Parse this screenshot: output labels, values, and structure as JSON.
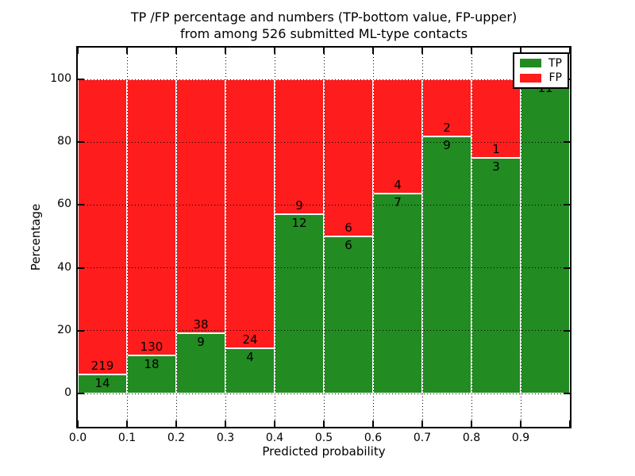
{
  "title": {
    "line1": "TP /FP percentage and numbers (TP-bottom value, FP-upper)",
    "line2": "from among 526 submitted ML-type contacts"
  },
  "chart_data": {
    "type": "bar",
    "stacked": true,
    "normalized_to_percent": 100,
    "bin_start": [
      0.0,
      0.1,
      0.2,
      0.3,
      0.4,
      0.5,
      0.6,
      0.7,
      0.8,
      0.9
    ],
    "bin_width": 0.1,
    "series": [
      {
        "name": "TP",
        "color": "#228b22",
        "counts": [
          14,
          18,
          9,
          4,
          12,
          6,
          7,
          9,
          3,
          11
        ]
      },
      {
        "name": "FP",
        "color": "#ff1c1c",
        "counts": [
          219,
          130,
          38,
          24,
          9,
          6,
          4,
          2,
          1,
          0
        ]
      }
    ],
    "tp_percent_shown": [
      6.0,
      12.2,
      19.1,
      14.3,
      57.1,
      50.0,
      63.6,
      81.8,
      75.0,
      100.0
    ],
    "total_contacts": 526,
    "xlabel": "Predicted probability",
    "ylabel": "Percentage",
    "xticks": [
      "0.0",
      "0.1",
      "0.2",
      "0.3",
      "0.4",
      "0.5",
      "0.6",
      "0.7",
      "0.8",
      "0.9"
    ],
    "yticks": [
      0,
      20,
      40,
      60,
      80,
      100
    ],
    "xlim": [
      0.0,
      1.0
    ],
    "ylim_display": [
      -11,
      110
    ],
    "grid": "dotted",
    "legend": {
      "position": "upper right",
      "entries": [
        {
          "label": "TP",
          "color": "#228b22"
        },
        {
          "label": "FP",
          "color": "#ff1c1c"
        }
      ]
    }
  }
}
